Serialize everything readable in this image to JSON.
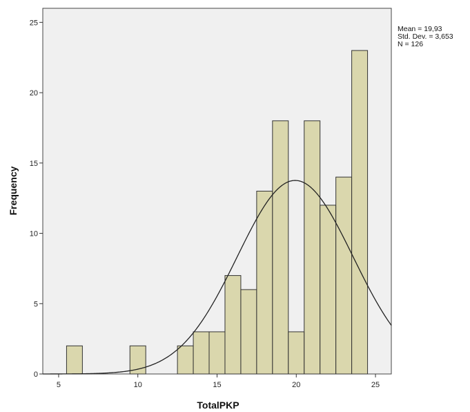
{
  "chart_data": {
    "type": "bar",
    "chart_subtype": "histogram",
    "xlabel": "TotalPKP",
    "ylabel": "Frequency",
    "xlim": [
      4,
      26
    ],
    "ylim": [
      0,
      26
    ],
    "x_ticks": [
      5,
      10,
      15,
      20,
      25
    ],
    "y_ticks": [
      0,
      5,
      10,
      15,
      20,
      25
    ],
    "bin_width": 1,
    "bins": [
      {
        "x": 6,
        "count": 2
      },
      {
        "x": 10,
        "count": 2
      },
      {
        "x": 13,
        "count": 2
      },
      {
        "x": 14,
        "count": 3
      },
      {
        "x": 15,
        "count": 3
      },
      {
        "x": 16,
        "count": 7
      },
      {
        "x": 17,
        "count": 6
      },
      {
        "x": 18,
        "count": 13
      },
      {
        "x": 19,
        "count": 18
      },
      {
        "x": 20,
        "count": 3
      },
      {
        "x": 21,
        "count": 18
      },
      {
        "x": 22,
        "count": 12
      },
      {
        "x": 23,
        "count": 14
      },
      {
        "x": 24,
        "count": 23
      }
    ],
    "normal_curve": {
      "mean": 19.93,
      "std_dev": 3.653,
      "n": 126
    },
    "grid": false,
    "bar_color": "#d6d3a3",
    "bar_edge_color": "#333333",
    "plot_background": "#f0f0f0"
  },
  "stats": {
    "mean_text": "Mean = 19,93",
    "std_text": "Std. Dev. = 3,653",
    "n_text": "N = 126"
  }
}
